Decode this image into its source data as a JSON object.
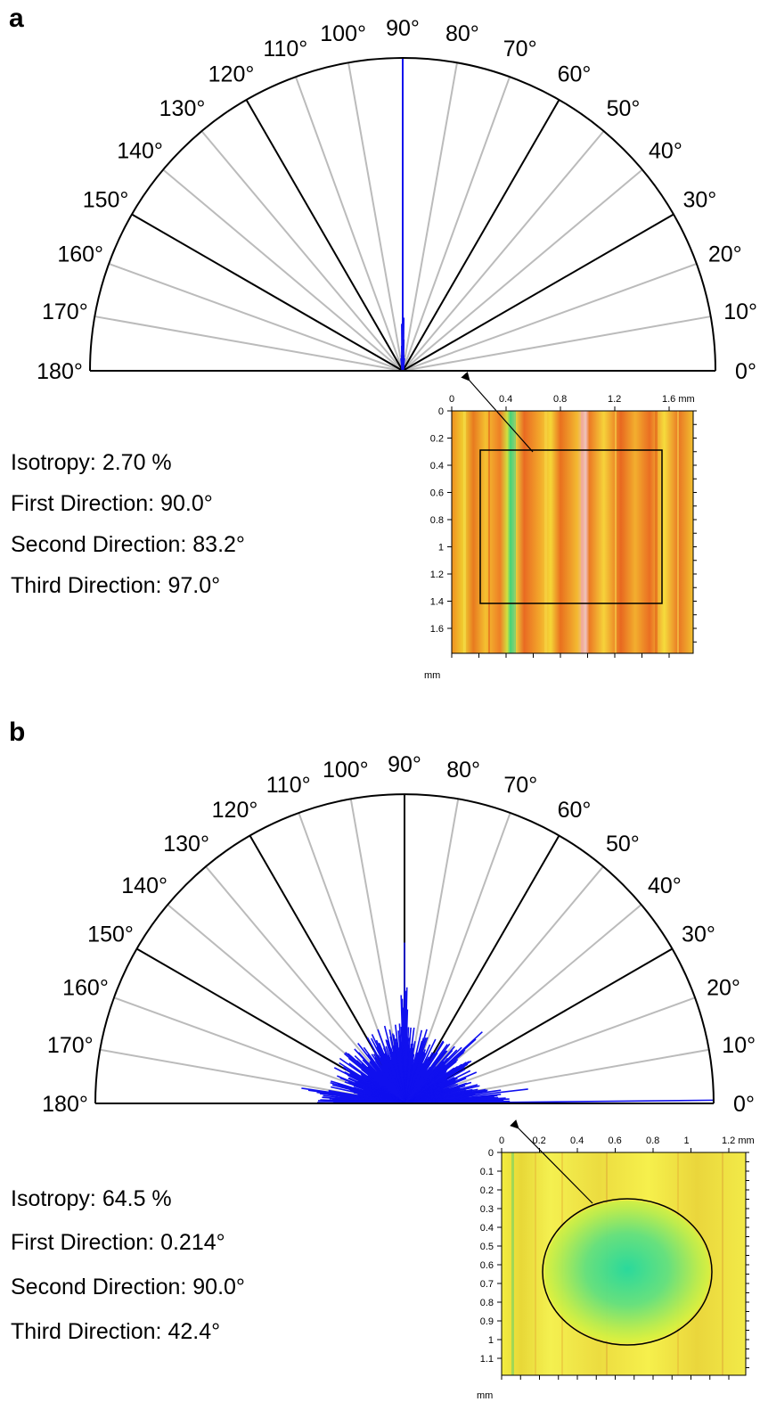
{
  "chart_data": [
    {
      "type": "polar",
      "panel": "a",
      "angle_unit": "°",
      "angle_range": [
        0,
        180
      ],
      "angle_labels": [
        "0°",
        "10°",
        "20°",
        "30°",
        "40°",
        "50°",
        "60°",
        "70°",
        "80°",
        "90°",
        "100°",
        "110°",
        "120°",
        "130°",
        "140°",
        "150°",
        "160°",
        "170°",
        "180°"
      ],
      "major_spokes": [
        30,
        60,
        90,
        120,
        150
      ],
      "peak_angle": 90,
      "rose": [
        {
          "angle": 90,
          "r": 1.0
        },
        {
          "angle": 89.5,
          "r": 0.17
        },
        {
          "angle": 90.5,
          "r": 0.15
        },
        {
          "angle": 89,
          "r": 0.1
        },
        {
          "angle": 91,
          "r": 0.08
        },
        {
          "angle": 88,
          "r": 0.05
        },
        {
          "angle": 92,
          "r": 0.05
        },
        {
          "angle": 85,
          "r": 0.04
        },
        {
          "angle": 95,
          "r": 0.04
        }
      ],
      "stats": [
        {
          "label": "Isotropy: 2.70 %"
        },
        {
          "label": "First Direction: 90.0°"
        },
        {
          "label": "Second Direction: 83.2°"
        },
        {
          "label": "Third Direction: 97.0°"
        }
      ],
      "inset": {
        "x_ticks": [
          "0",
          "0.4",
          "0.8",
          "1.2",
          "1.6 mm"
        ],
        "y_ticks": [
          "0",
          "0.2",
          "0.4",
          "0.6",
          "0.8",
          "1",
          "1.2",
          "1.4",
          "1.6"
        ],
        "unit": "mm",
        "pattern": "vertical-stripes",
        "roi": "rectangle"
      }
    },
    {
      "type": "polar",
      "panel": "b",
      "angle_unit": "°",
      "angle_range": [
        0,
        180
      ],
      "angle_labels": [
        "0°",
        "10°",
        "20°",
        "30°",
        "40°",
        "50°",
        "60°",
        "70°",
        "80°",
        "90°",
        "100°",
        "110°",
        "120°",
        "130°",
        "140°",
        "150°",
        "160°",
        "170°",
        "180°"
      ],
      "major_spokes": [
        30,
        60,
        90,
        120,
        150
      ],
      "peak_angle": 0.214,
      "stats": [
        {
          "label": "Isotropy: 64.5 %"
        },
        {
          "label": "First Direction: 0.214°"
        },
        {
          "label": "Second Direction: 90.0°"
        },
        {
          "label": "Third Direction: 42.4°"
        }
      ],
      "inset": {
        "x_ticks": [
          "0",
          "0.2",
          "0.4",
          "0.6",
          "0.8",
          "1",
          "1.2 mm"
        ],
        "y_ticks": [
          "0",
          "0.1",
          "0.2",
          "0.3",
          "0.4",
          "0.5",
          "0.6",
          "0.7",
          "0.8",
          "0.9",
          "1",
          "1.1"
        ],
        "unit": "mm",
        "pattern": "circular-spot",
        "roi": "ellipse"
      }
    }
  ],
  "colors": {
    "rose": "#1010ee",
    "major_spoke": "#000000",
    "minor_spoke": "#bbbbbb"
  }
}
